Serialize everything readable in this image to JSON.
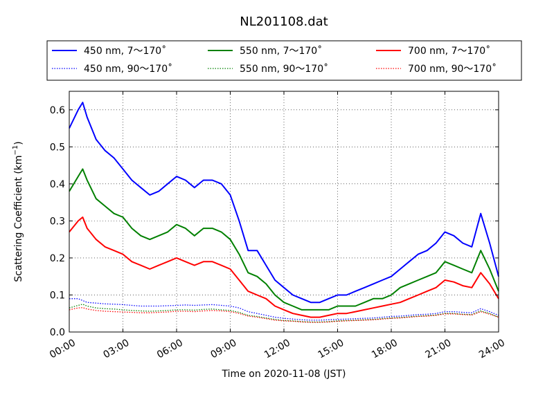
{
  "chart_data": {
    "type": "line",
    "title": "NL201108.dat",
    "xlabel": "Time on 2020-11-08 (JST)",
    "ylabel": "Scattering Coefficient (km",
    "ylabel_sup": "−1",
    "ylabel_close": ")",
    "xlim": [
      "00:00",
      "24:00"
    ],
    "ylim": [
      0,
      0.65
    ],
    "grid": true,
    "legend_position": "top",
    "x_ticks": [
      "00:00",
      "03:00",
      "06:00",
      "09:00",
      "12:00",
      "15:00",
      "18:00",
      "21:00",
      "24:00"
    ],
    "y_ticks": [
      "0.0",
      "0.1",
      "0.2",
      "0.3",
      "0.4",
      "0.5",
      "0.6"
    ],
    "x": [
      "00:00",
      "00:30",
      "00:45",
      "01:00",
      "01:30",
      "02:00",
      "02:30",
      "03:00",
      "03:30",
      "04:00",
      "04:30",
      "05:00",
      "05:30",
      "06:00",
      "06:30",
      "07:00",
      "07:30",
      "08:00",
      "08:30",
      "09:00",
      "09:30",
      "10:00",
      "10:30",
      "11:00",
      "11:30",
      "12:00",
      "12:30",
      "13:00",
      "13:30",
      "14:00",
      "14:30",
      "15:00",
      "15:30",
      "16:00",
      "16:30",
      "17:00",
      "17:30",
      "18:00",
      "18:30",
      "19:00",
      "19:30",
      "20:00",
      "20:30",
      "21:00",
      "21:30",
      "22:00",
      "22:30",
      "23:00",
      "23:30",
      "24:00"
    ],
    "series": [
      {
        "name": "450 nm, 7～170˚",
        "color": "#0000ff",
        "style": "solid",
        "values": [
          0.55,
          0.6,
          0.62,
          0.58,
          0.52,
          0.49,
          0.47,
          0.44,
          0.41,
          0.39,
          0.37,
          0.38,
          0.4,
          0.42,
          0.41,
          0.39,
          0.41,
          0.41,
          0.4,
          0.37,
          0.3,
          0.22,
          0.22,
          0.18,
          0.14,
          0.12,
          0.1,
          0.09,
          0.08,
          0.08,
          0.09,
          0.1,
          0.1,
          0.11,
          0.12,
          0.13,
          0.14,
          0.15,
          0.17,
          0.19,
          0.21,
          0.22,
          0.24,
          0.27,
          0.26,
          0.24,
          0.23,
          0.32,
          0.24,
          0.15
        ]
      },
      {
        "name": "550 nm, 7～170˚",
        "color": "#008000",
        "style": "solid",
        "values": [
          0.38,
          0.42,
          0.44,
          0.41,
          0.36,
          0.34,
          0.32,
          0.31,
          0.28,
          0.26,
          0.25,
          0.26,
          0.27,
          0.29,
          0.28,
          0.26,
          0.28,
          0.28,
          0.27,
          0.25,
          0.21,
          0.16,
          0.15,
          0.13,
          0.1,
          0.08,
          0.07,
          0.06,
          0.06,
          0.06,
          0.06,
          0.07,
          0.07,
          0.07,
          0.08,
          0.09,
          0.09,
          0.1,
          0.12,
          0.13,
          0.14,
          0.15,
          0.16,
          0.19,
          0.18,
          0.17,
          0.16,
          0.22,
          0.17,
          0.11
        ]
      },
      {
        "name": "700 nm, 7～170˚",
        "color": "#ff0000",
        "style": "solid",
        "values": [
          0.27,
          0.3,
          0.31,
          0.28,
          0.25,
          0.23,
          0.22,
          0.21,
          0.19,
          0.18,
          0.17,
          0.18,
          0.19,
          0.2,
          0.19,
          0.18,
          0.19,
          0.19,
          0.18,
          0.17,
          0.14,
          0.11,
          0.1,
          0.09,
          0.07,
          0.06,
          0.05,
          0.045,
          0.04,
          0.04,
          0.045,
          0.05,
          0.05,
          0.055,
          0.06,
          0.065,
          0.07,
          0.075,
          0.08,
          0.09,
          0.1,
          0.11,
          0.12,
          0.14,
          0.135,
          0.125,
          0.12,
          0.16,
          0.13,
          0.09
        ]
      },
      {
        "name": "450 nm, 90～170˚",
        "color": "#0000ff",
        "style": "dotted",
        "values": [
          0.09,
          0.09,
          0.085,
          0.08,
          0.078,
          0.076,
          0.075,
          0.074,
          0.072,
          0.07,
          0.07,
          0.07,
          0.071,
          0.072,
          0.073,
          0.072,
          0.073,
          0.074,
          0.072,
          0.07,
          0.065,
          0.055,
          0.05,
          0.045,
          0.04,
          0.037,
          0.035,
          0.033,
          0.032,
          0.032,
          0.033,
          0.034,
          0.035,
          0.036,
          0.037,
          0.038,
          0.04,
          0.042,
          0.043,
          0.045,
          0.047,
          0.048,
          0.05,
          0.055,
          0.055,
          0.053,
          0.052,
          0.063,
          0.055,
          0.045
        ]
      },
      {
        "name": "550 nm, 90～170˚",
        "color": "#008000",
        "style": "dotted",
        "values": [
          0.065,
          0.072,
          0.075,
          0.07,
          0.065,
          0.063,
          0.062,
          0.06,
          0.058,
          0.057,
          0.056,
          0.057,
          0.058,
          0.06,
          0.06,
          0.059,
          0.061,
          0.062,
          0.06,
          0.058,
          0.053,
          0.045,
          0.042,
          0.038,
          0.034,
          0.031,
          0.03,
          0.028,
          0.027,
          0.027,
          0.028,
          0.03,
          0.031,
          0.032,
          0.033,
          0.034,
          0.036,
          0.038,
          0.039,
          0.041,
          0.043,
          0.044,
          0.046,
          0.05,
          0.05,
          0.048,
          0.047,
          0.057,
          0.05,
          0.04
        ]
      },
      {
        "name": "700 nm, 90～170˚",
        "color": "#ff0000",
        "style": "dotted",
        "values": [
          0.06,
          0.065,
          0.066,
          0.062,
          0.058,
          0.056,
          0.055,
          0.054,
          0.053,
          0.052,
          0.052,
          0.053,
          0.054,
          0.056,
          0.056,
          0.055,
          0.057,
          0.058,
          0.057,
          0.055,
          0.05,
          0.043,
          0.04,
          0.036,
          0.032,
          0.03,
          0.029,
          0.027,
          0.026,
          0.026,
          0.027,
          0.029,
          0.03,
          0.031,
          0.032,
          0.033,
          0.035,
          0.037,
          0.038,
          0.04,
          0.042,
          0.043,
          0.045,
          0.049,
          0.049,
          0.047,
          0.046,
          0.055,
          0.048,
          0.04
        ]
      }
    ]
  }
}
